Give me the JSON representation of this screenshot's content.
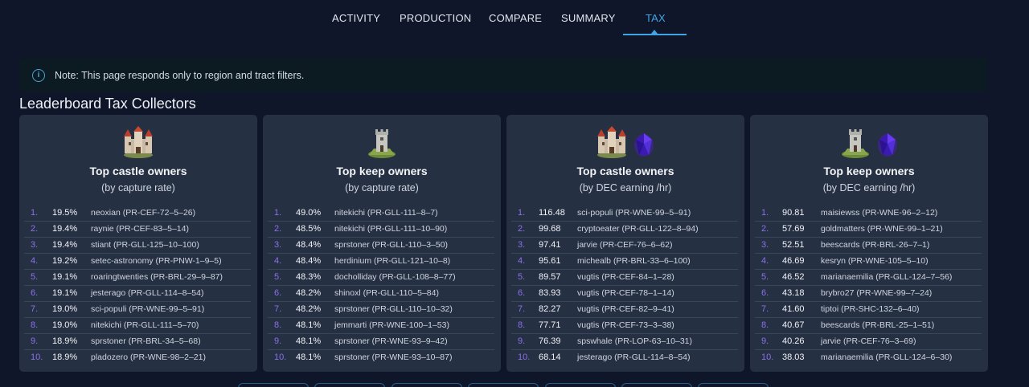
{
  "tabs": [
    {
      "label": "ACTIVITY"
    },
    {
      "label": "PRODUCTION"
    },
    {
      "label": "COMPARE"
    },
    {
      "label": "SUMMARY"
    },
    {
      "label": "TAX"
    }
  ],
  "active_tab": "TAX",
  "note": {
    "icon": "info-icon",
    "text": "Note: This page responds only to region and tract filters."
  },
  "section_title": "Leaderboard Tax Collectors",
  "cards": [
    {
      "icons": [
        "castle-icon"
      ],
      "title": "Top castle owners",
      "subtitle": "(by capture rate)",
      "rows": [
        {
          "rank": "1.",
          "value": "19.5%",
          "owner": "neoxian (PR-CEF-72–5–26)"
        },
        {
          "rank": "2.",
          "value": "19.4%",
          "owner": "raynie (PR-CEF-83–5–14)"
        },
        {
          "rank": "3.",
          "value": "19.4%",
          "owner": "stiant (PR-GLL-125–10–100)"
        },
        {
          "rank": "4.",
          "value": "19.2%",
          "owner": "setec-astronomy (PR-PNW-1–9–5)"
        },
        {
          "rank": "5.",
          "value": "19.1%",
          "owner": "roaringtwenties (PR-BRL-29–9–87)"
        },
        {
          "rank": "6.",
          "value": "19.1%",
          "owner": "jesterago (PR-GLL-114–8–54)"
        },
        {
          "rank": "7.",
          "value": "19.0%",
          "owner": "sci-populi (PR-WNE-99–5–91)"
        },
        {
          "rank": "8.",
          "value": "19.0%",
          "owner": "nitekichi (PR-GLL-111–5–70)"
        },
        {
          "rank": "9.",
          "value": "18.9%",
          "owner": "sprstoner (PR-BRL-34–5–68)"
        },
        {
          "rank": "10.",
          "value": "18.9%",
          "owner": "pladozero (PR-WNE-98–2–21)"
        }
      ]
    },
    {
      "icons": [
        "keep-icon"
      ],
      "title": "Top keep owners",
      "subtitle": "(by capture rate)",
      "rows": [
        {
          "rank": "1.",
          "value": "49.0%",
          "owner": "nitekichi (PR-GLL-111–8–7)"
        },
        {
          "rank": "2.",
          "value": "48.5%",
          "owner": "nitekichi (PR-GLL-111–10–90)"
        },
        {
          "rank": "3.",
          "value": "48.4%",
          "owner": "sprstoner (PR-GLL-110–3–50)"
        },
        {
          "rank": "4.",
          "value": "48.4%",
          "owner": "herdinium (PR-GLL-121–10–8)"
        },
        {
          "rank": "5.",
          "value": "48.3%",
          "owner": "docholliday (PR-GLL-108–8–77)"
        },
        {
          "rank": "6.",
          "value": "48.2%",
          "owner": "shinoxl (PR-GLL-110–5–84)"
        },
        {
          "rank": "7.",
          "value": "48.2%",
          "owner": "sprstoner (PR-GLL-110–10–32)"
        },
        {
          "rank": "8.",
          "value": "48.1%",
          "owner": "jemmarti (PR-WNE-100–1–53)"
        },
        {
          "rank": "9.",
          "value": "48.1%",
          "owner": "sprstoner (PR-WNE-93–9–42)"
        },
        {
          "rank": "10.",
          "value": "48.1%",
          "owner": "sprstoner (PR-WNE-93–10–87)"
        }
      ]
    },
    {
      "icons": [
        "castle-icon",
        "dec-crystal-icon"
      ],
      "title": "Top castle owners",
      "subtitle": "(by DEC earning /hr)",
      "rows": [
        {
          "rank": "1.",
          "value": "116.48",
          "owner": "sci-populi (PR-WNE-99–5–91)"
        },
        {
          "rank": "2.",
          "value": "99.68",
          "owner": "cryptoeater (PR-GLL-122–8–94)"
        },
        {
          "rank": "3.",
          "value": "97.41",
          "owner": "jarvie (PR-CEF-76–6–62)"
        },
        {
          "rank": "4.",
          "value": "95.61",
          "owner": "michealb (PR-BRL-33–6–100)"
        },
        {
          "rank": "5.",
          "value": "89.57",
          "owner": "vugtis (PR-CEF-84–1–28)"
        },
        {
          "rank": "6.",
          "value": "83.93",
          "owner": "vugtis (PR-CEF-78–1–14)"
        },
        {
          "rank": "7.",
          "value": "82.27",
          "owner": "vugtis (PR-CEF-82–9–41)"
        },
        {
          "rank": "8.",
          "value": "77.71",
          "owner": "vugtis (PR-CEF-73–3–38)"
        },
        {
          "rank": "9.",
          "value": "76.39",
          "owner": "spswhale (PR-LOP-63–10–31)"
        },
        {
          "rank": "10.",
          "value": "68.14",
          "owner": "jesterago (PR-GLL-114–8–54)"
        }
      ]
    },
    {
      "icons": [
        "keep-icon",
        "dec-crystal-icon"
      ],
      "title": "Top keep owners",
      "subtitle": "(by DEC earning /hr)",
      "rows": [
        {
          "rank": "1.",
          "value": "90.81",
          "owner": "maisiewss (PR-WNE-96–2–12)"
        },
        {
          "rank": "2.",
          "value": "57.69",
          "owner": "goldmatters (PR-WNE-99–1–21)"
        },
        {
          "rank": "3.",
          "value": "52.51",
          "owner": "beescards (PR-BRL-26–7–1)"
        },
        {
          "rank": "4.",
          "value": "46.69",
          "owner": "kesryn (PR-WNE-105–5–10)"
        },
        {
          "rank": "5.",
          "value": "46.52",
          "owner": "marianaemilia (PR-GLL-124–7–56)"
        },
        {
          "rank": "6.",
          "value": "43.18",
          "owner": "brybro27 (PR-WNE-99–7–24)"
        },
        {
          "rank": "7.",
          "value": "41.60",
          "owner": "tiptoi (PR-SHC-132–6–40)"
        },
        {
          "rank": "8.",
          "value": "40.67",
          "owner": "beescards (PR-BRL-25–1–51)"
        },
        {
          "rank": "9.",
          "value": "40.26",
          "owner": "jarvie (PR-CEF-76–3–69)"
        },
        {
          "rank": "10.",
          "value": "38.03",
          "owner": "marianaemilia (PR-GLL-124–6–30)"
        }
      ]
    }
  ],
  "colors": {
    "accent": "#3fa5e6",
    "rank": "#8a72e8",
    "card_bg": "#263043",
    "page_bg": "#0f1629"
  }
}
